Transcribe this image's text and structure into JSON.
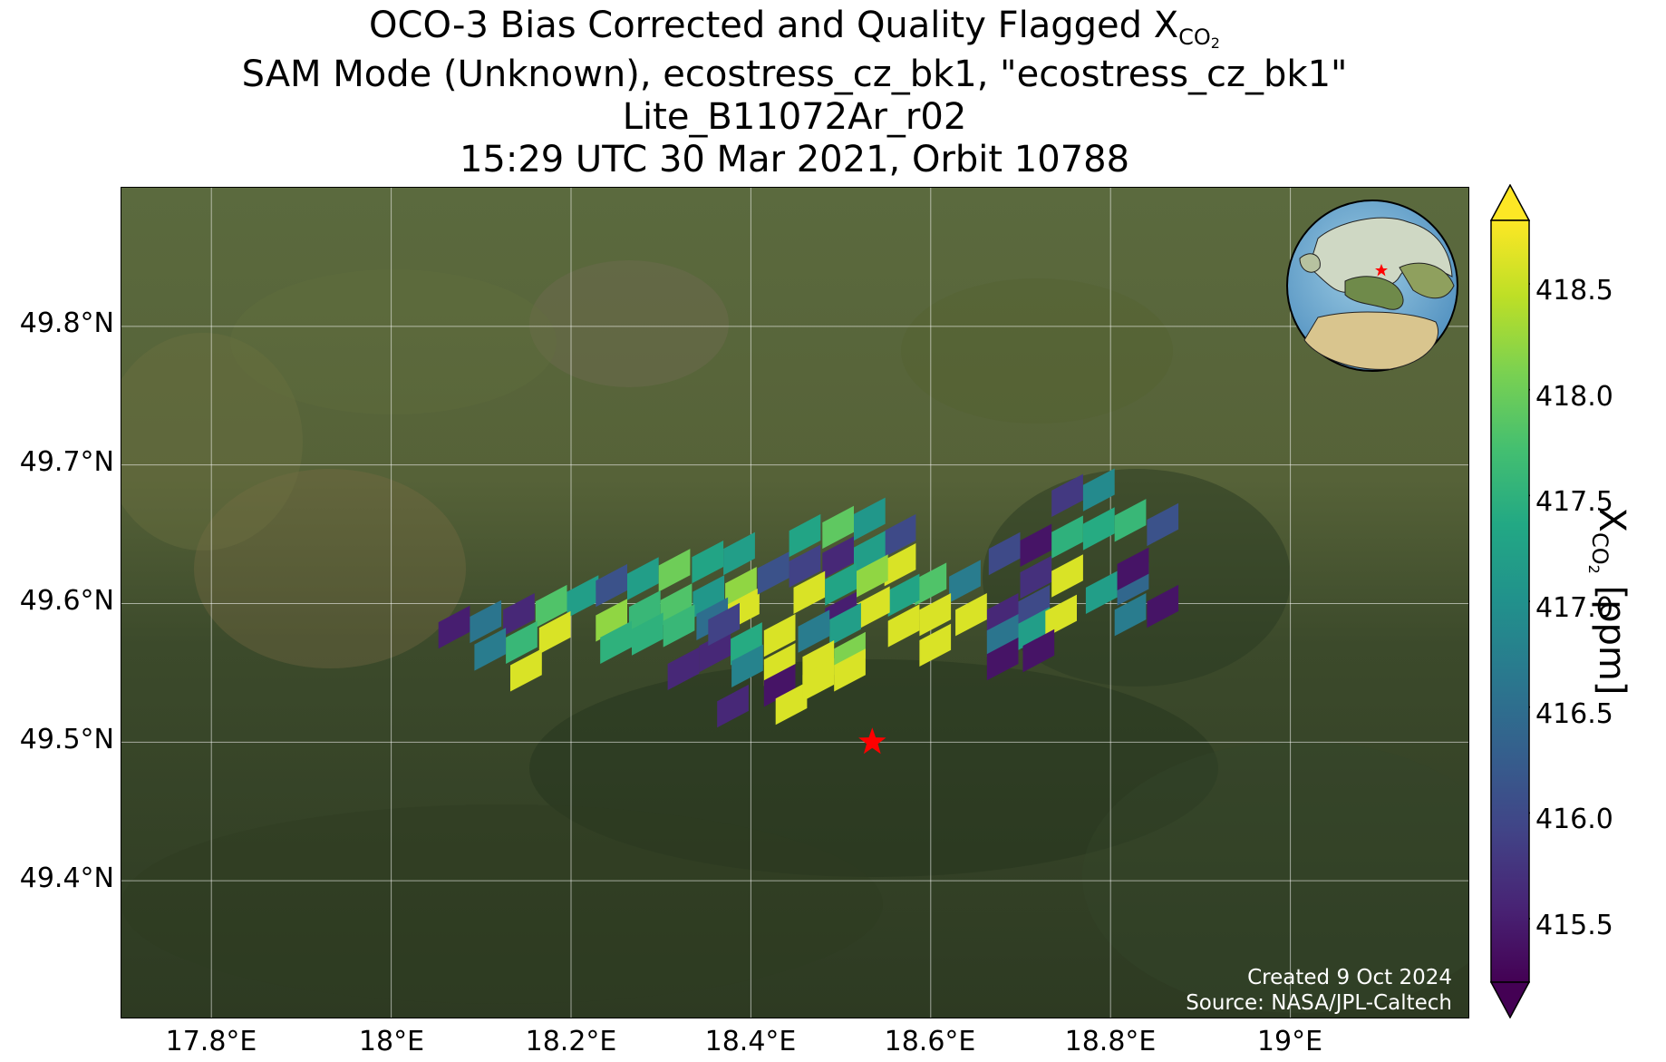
{
  "title": {
    "line1_prefix": "OCO-3 Bias Corrected and Quality Flagged X",
    "line1_sub": "CO",
    "line1_sub2": "2",
    "line2": "SAM Mode (Unknown), ecostress_cz_bk1, \"ecostress_cz_bk1\"",
    "line3": "Lite_B11072Ar_r02",
    "line4": "15:29 UTC 30 Mar 2021, Orbit 10788"
  },
  "map": {
    "lon_range": [
      17.7,
      19.2
    ],
    "lat_range": [
      49.3,
      49.9
    ],
    "lat_ticks": [
      {
        "value": 49.8,
        "label": "49.8°N"
      },
      {
        "value": 49.7,
        "label": "49.7°N"
      },
      {
        "value": 49.6,
        "label": "49.6°N"
      },
      {
        "value": 49.5,
        "label": "49.5°N"
      },
      {
        "value": 49.4,
        "label": "49.4°N"
      }
    ],
    "lon_ticks": [
      {
        "value": 17.8,
        "label": "17.8°E"
      },
      {
        "value": 18.0,
        "label": "18°E"
      },
      {
        "value": 18.2,
        "label": "18.2°E"
      },
      {
        "value": 18.4,
        "label": "18.4°E"
      },
      {
        "value": 18.6,
        "label": "18.6°E"
      },
      {
        "value": 18.8,
        "label": "18.8°E"
      },
      {
        "value": 19.0,
        "label": "19°E"
      }
    ],
    "target_marker": {
      "icon": "red-star-icon",
      "lon": 18.535,
      "lat": 49.5,
      "color": "#ff0000"
    },
    "globe_inset": {
      "icon": "globe-icon",
      "marker": "red-star-icon"
    },
    "background": "satellite imagery, forested hills and farmland",
    "credit_line1": "Created 9 Oct 2024",
    "credit_line2": "Source: NASA/JPL-Caltech"
  },
  "colorbar": {
    "colormap": "viridis",
    "min": 415.2,
    "max": 418.8,
    "extend": "both",
    "ticks": [
      "415.5",
      "416.0",
      "416.5",
      "417.0",
      "417.5",
      "418.0",
      "418.5"
    ],
    "label_prefix": "X",
    "label_sub": "CO",
    "label_sub2": "2",
    "label_suffix": " [ppm]"
  },
  "chart_data": {
    "type": "heatmap",
    "x_label": "",
    "y_label": "",
    "description_units": "each sounding: lon (°E), lat (°N), XCO2 (ppm)",
    "soundings": [
      [
        18.07,
        49.583,
        415.5
      ],
      [
        18.105,
        49.587,
        416.6
      ],
      [
        18.142,
        49.592,
        415.6
      ],
      [
        18.178,
        49.598,
        417.8
      ],
      [
        18.213,
        49.605,
        417.2
      ],
      [
        18.11,
        49.567,
        416.7
      ],
      [
        18.145,
        49.572,
        417.6
      ],
      [
        18.182,
        49.579,
        418.6
      ],
      [
        18.15,
        49.552,
        418.6
      ],
      [
        18.245,
        49.613,
        416.1
      ],
      [
        18.28,
        49.618,
        417.2
      ],
      [
        18.315,
        49.624,
        418.0
      ],
      [
        18.352,
        49.63,
        417.3
      ],
      [
        18.387,
        49.636,
        417.2
      ],
      [
        18.245,
        49.588,
        418.2
      ],
      [
        18.282,
        49.594,
        417.6
      ],
      [
        18.317,
        49.599,
        417.8
      ],
      [
        18.353,
        49.605,
        417.1
      ],
      [
        18.389,
        49.611,
        418.2
      ],
      [
        18.25,
        49.572,
        417.5
      ],
      [
        18.285,
        49.578,
        417.5
      ],
      [
        18.32,
        49.584,
        417.6
      ],
      [
        18.357,
        49.589,
        416.5
      ],
      [
        18.392,
        49.596,
        418.6
      ],
      [
        18.36,
        49.566,
        415.6
      ],
      [
        18.395,
        49.571,
        417.4
      ],
      [
        18.432,
        49.577,
        418.6
      ],
      [
        18.325,
        49.553,
        415.6
      ],
      [
        18.396,
        49.555,
        416.8
      ],
      [
        18.432,
        49.556,
        418.6
      ],
      [
        18.38,
        49.526,
        415.6
      ],
      [
        18.432,
        49.541,
        415.4
      ],
      [
        18.445,
        49.528,
        418.6
      ],
      [
        18.425,
        49.622,
        416.1
      ],
      [
        18.46,
        49.649,
        417.3
      ],
      [
        18.497,
        49.655,
        417.9
      ],
      [
        18.532,
        49.661,
        417.1
      ],
      [
        18.566,
        49.649,
        416.0
      ],
      [
        18.46,
        49.627,
        415.9
      ],
      [
        18.497,
        49.633,
        415.6
      ],
      [
        18.532,
        49.637,
        417.2
      ],
      [
        18.566,
        49.628,
        418.6
      ],
      [
        18.6,
        49.614,
        417.8
      ],
      [
        18.638,
        49.616,
        416.7
      ],
      [
        18.465,
        49.608,
        418.6
      ],
      [
        18.5,
        49.614,
        417.3
      ],
      [
        18.535,
        49.62,
        418.2
      ],
      [
        18.57,
        49.606,
        417.3
      ],
      [
        18.605,
        49.592,
        418.6
      ],
      [
        18.5,
        49.593,
        415.5
      ],
      [
        18.537,
        49.597,
        418.6
      ],
      [
        18.57,
        49.584,
        418.6
      ],
      [
        18.47,
        49.58,
        416.7
      ],
      [
        18.505,
        49.585,
        417.2
      ],
      [
        18.605,
        49.57,
        418.6
      ],
      [
        18.475,
        49.558,
        418.6
      ],
      [
        18.51,
        49.564,
        418.1
      ],
      [
        18.475,
        49.545,
        418.6
      ],
      [
        18.51,
        49.552,
        418.6
      ],
      [
        18.37,
        49.585,
        415.9
      ],
      [
        18.68,
        49.592,
        415.6
      ],
      [
        18.715,
        49.598,
        416.0
      ],
      [
        18.645,
        49.592,
        418.6
      ],
      [
        18.68,
        49.577,
        416.6
      ],
      [
        18.715,
        49.582,
        417.2
      ],
      [
        18.745,
        49.591,
        418.6
      ],
      [
        18.68,
        49.56,
        415.4
      ],
      [
        18.72,
        49.566,
        415.4
      ],
      [
        18.682,
        49.636,
        416.0
      ],
      [
        18.717,
        49.642,
        415.4
      ],
      [
        18.752,
        49.648,
        417.5
      ],
      [
        18.787,
        49.654,
        417.4
      ],
      [
        18.822,
        49.66,
        417.6
      ],
      [
        18.858,
        49.657,
        416.1
      ],
      [
        18.752,
        49.678,
        415.8
      ],
      [
        18.787,
        49.682,
        416.9
      ],
      [
        18.79,
        49.608,
        417.2
      ],
      [
        18.825,
        49.614,
        416.4
      ],
      [
        18.825,
        49.625,
        415.4
      ],
      [
        18.822,
        49.592,
        416.7
      ],
      [
        18.858,
        49.598,
        415.4
      ],
      [
        18.717,
        49.619,
        415.7
      ],
      [
        18.752,
        49.62,
        418.6
      ]
    ]
  }
}
